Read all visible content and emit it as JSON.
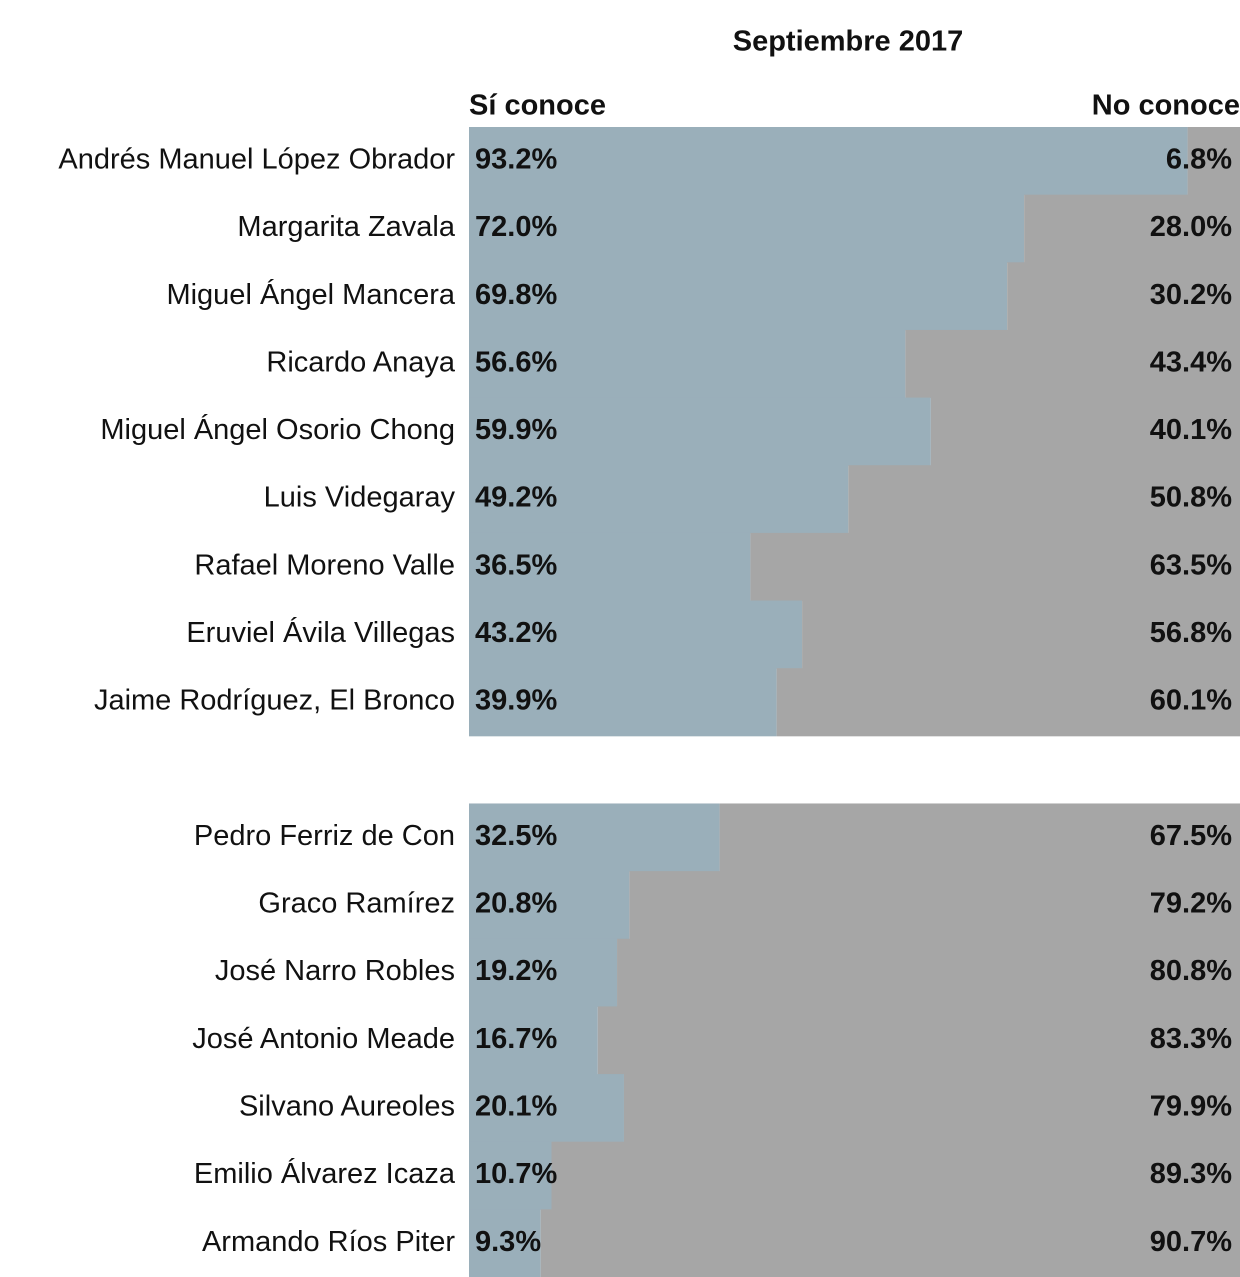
{
  "chart_data": {
    "type": "stacked-barh",
    "title": "Septiembre 2017",
    "categories": [
      "Andrés Manuel López Obrador",
      "Margarita Zavala",
      "Miguel Ángel Mancera",
      "Ricardo Anaya",
      "Miguel Ángel Osorio Chong",
      "Luis Videgaray",
      "Rafael Moreno Valle",
      "Eruviel Ávila Villegas",
      "Jaime Rodríguez, El Bronco",
      null,
      "Pedro Ferriz de Con",
      "Graco Ramírez",
      "José Narro Robles",
      "José Antonio Meade",
      "Silvano Aureoles",
      "Emilio Álvarez Icaza",
      "Armando Ríos Piter"
    ],
    "xlim": [
      0,
      100
    ],
    "series": [
      {
        "name": "Sí conoce",
        "color": "#9aafba",
        "values": [
          93.2,
          72.0,
          69.8,
          56.6,
          59.9,
          49.2,
          36.5,
          43.2,
          39.9,
          null,
          32.5,
          20.8,
          19.2,
          16.7,
          20.1,
          10.7,
          9.3
        ],
        "value_labels": [
          "93.2%",
          "72.0%",
          "69.8%",
          "56.6%",
          "59.9%",
          "49.2%",
          "36.5%",
          "43.2%",
          "39.9%",
          null,
          "32.5%",
          "20.8%",
          "19.2%",
          "16.7%",
          "20.1%",
          "10.7%",
          "9.3%"
        ]
      },
      {
        "name": "No conoce",
        "color": "#a6a6a6",
        "values": [
          6.8,
          28.0,
          30.2,
          43.4,
          40.1,
          50.8,
          63.5,
          56.8,
          60.1,
          null,
          67.5,
          79.2,
          80.8,
          83.3,
          79.9,
          89.3,
          90.7
        ],
        "value_labels": [
          "6.8%",
          "28.0%",
          "30.2%",
          "43.4%",
          "40.1%",
          "50.8%",
          "63.5%",
          "56.8%",
          "60.1%",
          null,
          "67.5%",
          "79.2%",
          "80.8%",
          "83.3%",
          "79.9%",
          "89.3%",
          "90.7%"
        ]
      }
    ]
  }
}
